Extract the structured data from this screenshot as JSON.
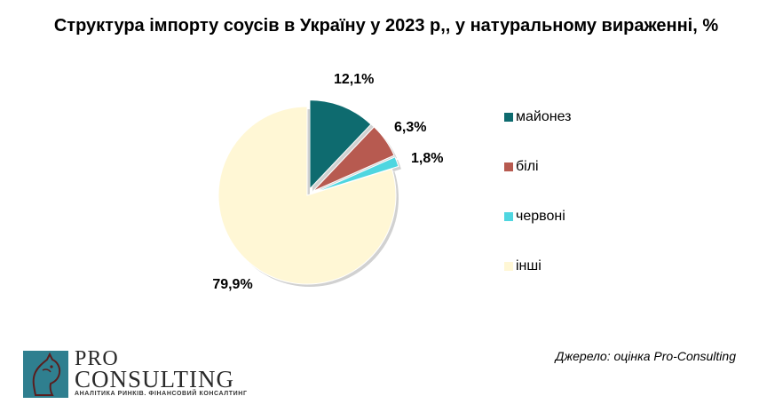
{
  "chart_data": {
    "type": "pie",
    "title": "Структура імпорту соусів в Україну у 2023 р,, у натуральному вираженні, %",
    "categories": [
      "майонез",
      "білі",
      "червоні",
      "інші"
    ],
    "values": [
      12.1,
      6.3,
      1.8,
      79.9
    ],
    "data_labels": [
      "12,1%",
      "6,3%",
      "1,8%",
      "79,9%"
    ],
    "colors": [
      "#0e6b6f",
      "#b75a50",
      "#4fd6e0",
      "#fff7d5"
    ],
    "legend_position": "right"
  },
  "source_text": "Джерело: оцінка Pro-Consulting",
  "logo": {
    "word1": "PRO",
    "word2": "CONSULTING",
    "tagline": "АНАЛІТИКА РИНКІВ. ФІНАНСОВИЙ КОНСАЛТИНГ",
    "icon": "horse-head-icon"
  }
}
